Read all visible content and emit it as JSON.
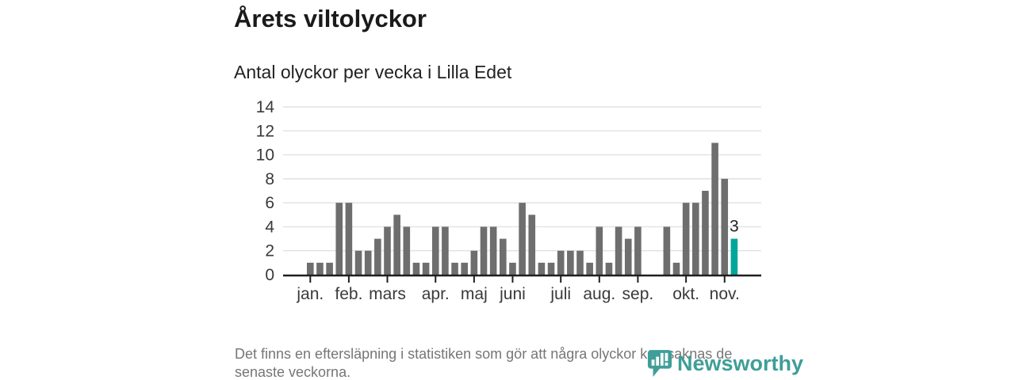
{
  "title": "Årets viltolyckor",
  "subtitle": "Antal olyckor per vecka i Lilla Edet",
  "footnote": {
    "line1": "Det finns en eftersläpning i statistiken som gör att några olyckor kan saknas de",
    "line2": "senaste veckorna."
  },
  "brand": {
    "name": "Newsworthy",
    "icon": "newsworthy-speech-bubble-bar-chart-icon",
    "color": "#3f9e98"
  },
  "colors": {
    "bar": "#6e6e6e",
    "highlight": "#00a79b",
    "grid": "#e1e1e1",
    "axis": "#1f1f1f",
    "tick_text": "#3a3a3a",
    "annotation": "#222222"
  },
  "chart_data": {
    "type": "bar",
    "title": "Årets viltolyckor",
    "subtitle": "Antal olyckor per vecka i Lilla Edet",
    "xlabel": "",
    "ylabel": "",
    "ylim": [
      0,
      14
    ],
    "y_ticks": [
      0,
      2,
      4,
      6,
      8,
      10,
      12,
      14
    ],
    "grid": true,
    "x_unit": "vecka",
    "values": [
      1,
      1,
      1,
      6,
      6,
      2,
      2,
      3,
      4,
      5,
      4,
      1,
      1,
      4,
      4,
      1,
      1,
      2,
      4,
      4,
      3,
      1,
      6,
      5,
      1,
      1,
      2,
      2,
      2,
      1,
      4,
      1,
      4,
      3,
      4,
      0,
      0,
      4,
      1,
      6,
      6,
      7,
      11,
      8,
      3
    ],
    "month_ticks": [
      {
        "label": "jan.",
        "week_index": 0
      },
      {
        "label": "feb.",
        "week_index": 4
      },
      {
        "label": "mars",
        "week_index": 8
      },
      {
        "label": "apr.",
        "week_index": 13
      },
      {
        "label": "maj",
        "week_index": 17
      },
      {
        "label": "juni",
        "week_index": 21
      },
      {
        "label": "juli",
        "week_index": 26
      },
      {
        "label": "aug.",
        "week_index": 30
      },
      {
        "label": "sep.",
        "week_index": 34
      },
      {
        "label": "okt.",
        "week_index": 39
      },
      {
        "label": "nov.",
        "week_index": 43
      }
    ],
    "highlight_index": 44,
    "annotation": {
      "label": "3",
      "week_index": 44,
      "value": 3
    }
  }
}
